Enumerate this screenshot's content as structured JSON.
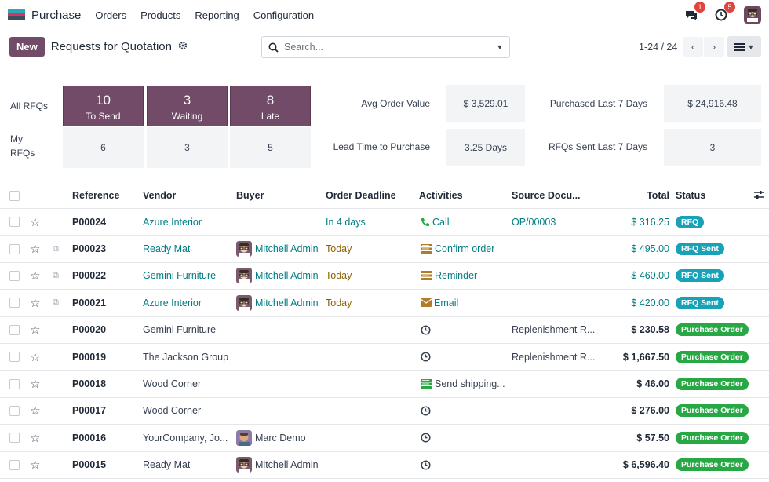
{
  "app": {
    "name": "Purchase",
    "logo_colors": [
      "#2ea8b4",
      "#d6336c",
      "#3d4f5c"
    ]
  },
  "nav": {
    "items": [
      "Orders",
      "Products",
      "Reporting",
      "Configuration"
    ]
  },
  "systray": {
    "messages_badge": "1",
    "activities_badge": "5"
  },
  "control": {
    "new_label": "New",
    "title": "Requests for Quotation",
    "search_placeholder": "Search...",
    "pager": "1-24 / 24"
  },
  "dashboard": {
    "all_rfqs_label": "All RFQs",
    "my_rfqs_label_1": "My",
    "my_rfqs_label_2": "RFQs",
    "tiles": [
      {
        "num": "10",
        "label": "To Send",
        "mine": "6"
      },
      {
        "num": "3",
        "label": "Waiting",
        "mine": "3"
      },
      {
        "num": "8",
        "label": "Late",
        "mine": "5"
      }
    ],
    "kpis": {
      "avg_label": "Avg Order Value",
      "avg_value": "$ 3,529.01",
      "purchased_label": "Purchased Last 7 Days",
      "purchased_value": "$ 24,916.48",
      "lead_label": "Lead Time to Purchase",
      "lead_value": "3.25 Days",
      "sent_label": "RFQs Sent Last 7 Days",
      "sent_value": "3"
    }
  },
  "table": {
    "headers": {
      "reference": "Reference",
      "vendor": "Vendor",
      "buyer": "Buyer",
      "deadline": "Order Deadline",
      "activities": "Activities",
      "source": "Source Docu...",
      "total": "Total",
      "status": "Status"
    },
    "rows": [
      {
        "ref": "P00024",
        "vendor": "Azure Interior",
        "buyer": "",
        "deadline": "In 4 days",
        "activity": "Call",
        "act_icon": "phone",
        "source": "OP/00003",
        "total": "$ 316.25",
        "status": "RFQ",
        "style": "link"
      },
      {
        "ref": "P00023",
        "vendor": "Ready Mat",
        "buyer": "Mitchell Admin",
        "deadline": "Today",
        "activity": "Confirm order",
        "act_icon": "todo",
        "source": "",
        "total": "$ 495.00",
        "status": "RFQ Sent",
        "style": "link"
      },
      {
        "ref": "P00022",
        "vendor": "Gemini Furniture",
        "buyer": "Mitchell Admin",
        "deadline": "Today",
        "activity": "Reminder",
        "act_icon": "todo",
        "source": "",
        "total": "$ 460.00",
        "status": "RFQ Sent",
        "style": "link"
      },
      {
        "ref": "P00021",
        "vendor": "Azure Interior",
        "buyer": "Mitchell Admin",
        "deadline": "Today",
        "activity": "Email",
        "act_icon": "email",
        "source": "",
        "total": "$ 420.00",
        "status": "RFQ Sent",
        "style": "link"
      },
      {
        "ref": "P00020",
        "vendor": "Gemini Furniture",
        "buyer": "",
        "deadline": "",
        "activity": "",
        "act_icon": "clock",
        "source": "Replenishment R...",
        "total": "$ 230.58",
        "status": "Purchase Order",
        "style": "plain"
      },
      {
        "ref": "P00019",
        "vendor": "The Jackson Group",
        "buyer": "",
        "deadline": "",
        "activity": "",
        "act_icon": "clock",
        "source": "Replenishment R...",
        "total": "$ 1,667.50",
        "status": "Purchase Order",
        "style": "plain"
      },
      {
        "ref": "P00018",
        "vendor": "Wood Corner",
        "buyer": "",
        "deadline": "",
        "activity": "Send shipping...",
        "act_icon": "todo-green",
        "source": "",
        "total": "$ 46.00",
        "status": "Purchase Order",
        "style": "plain"
      },
      {
        "ref": "P00017",
        "vendor": "Wood Corner",
        "buyer": "",
        "deadline": "",
        "activity": "",
        "act_icon": "clock",
        "source": "",
        "total": "$ 276.00",
        "status": "Purchase Order",
        "style": "plain"
      },
      {
        "ref": "P00016",
        "vendor": "YourCompany, Jo...",
        "buyer": "Marc Demo",
        "deadline": "",
        "activity": "",
        "act_icon": "clock",
        "source": "",
        "total": "$ 57.50",
        "status": "Purchase Order",
        "style": "plain"
      },
      {
        "ref": "P00015",
        "vendor": "Ready Mat",
        "buyer": "Mitchell Admin",
        "deadline": "",
        "activity": "",
        "act_icon": "clock",
        "source": "",
        "total": "$ 6,596.40",
        "status": "Purchase Order",
        "style": "plain"
      }
    ]
  }
}
